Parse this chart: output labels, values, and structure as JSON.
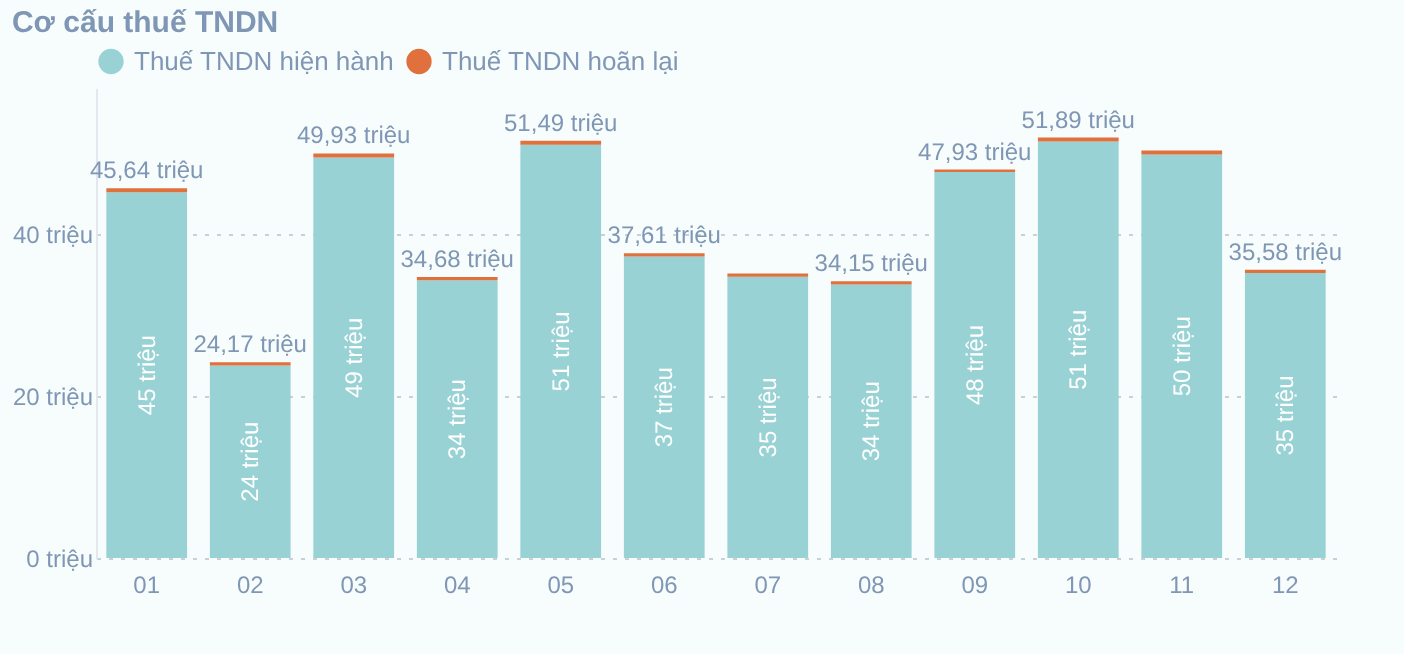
{
  "chart_data": {
    "type": "bar",
    "title": "Cơ cấu thuế TNDN",
    "stacked": true,
    "legend": "top left",
    "grid": "y",
    "categories": [
      "01",
      "02",
      "03",
      "04",
      "05",
      "06",
      "07",
      "08",
      "09",
      "10",
      "11",
      "12"
    ],
    "series": [
      {
        "name": "Thuế TNDN hiện hành",
        "color": "#98d2d4",
        "values": [
          45.14,
          23.77,
          49.43,
          34.28,
          50.99,
          37.21,
          34.7,
          33.75,
          47.63,
          51.39,
          49.8,
          35.18
        ],
        "value_labels": [
          "45 triệu",
          "24 triệu",
          "49 triệu",
          "34 triệu",
          "51 triệu",
          "37 triệu",
          "35 triệu",
          "34 triệu",
          "48 triệu",
          "51 triệu",
          "50 triệu",
          "35 triệu"
        ]
      },
      {
        "name": "Thuế TNDN hoãn lại",
        "color": "#e0703c",
        "values": [
          0.5,
          0.4,
          0.5,
          0.4,
          0.5,
          0.4,
          0.4,
          0.4,
          0.3,
          0.5,
          0.5,
          0.4
        ]
      }
    ],
    "totals": [
      "45,64 triệu",
      "24,17 triệu",
      "49,93 triệu",
      "34,68 triệu",
      "51,49 triệu",
      "37,61 triệu",
      null,
      "34,15 triệu",
      "47,93 triệu",
      "51,89 triệu",
      null,
      "35,58 triệu"
    ],
    "ylim": [
      0,
      58
    ],
    "yticks": [
      {
        "value": 0,
        "label": "0 triệu"
      },
      {
        "value": 20,
        "label": "20 triệu"
      },
      {
        "value": 40,
        "label": "40 triệu"
      }
    ]
  }
}
